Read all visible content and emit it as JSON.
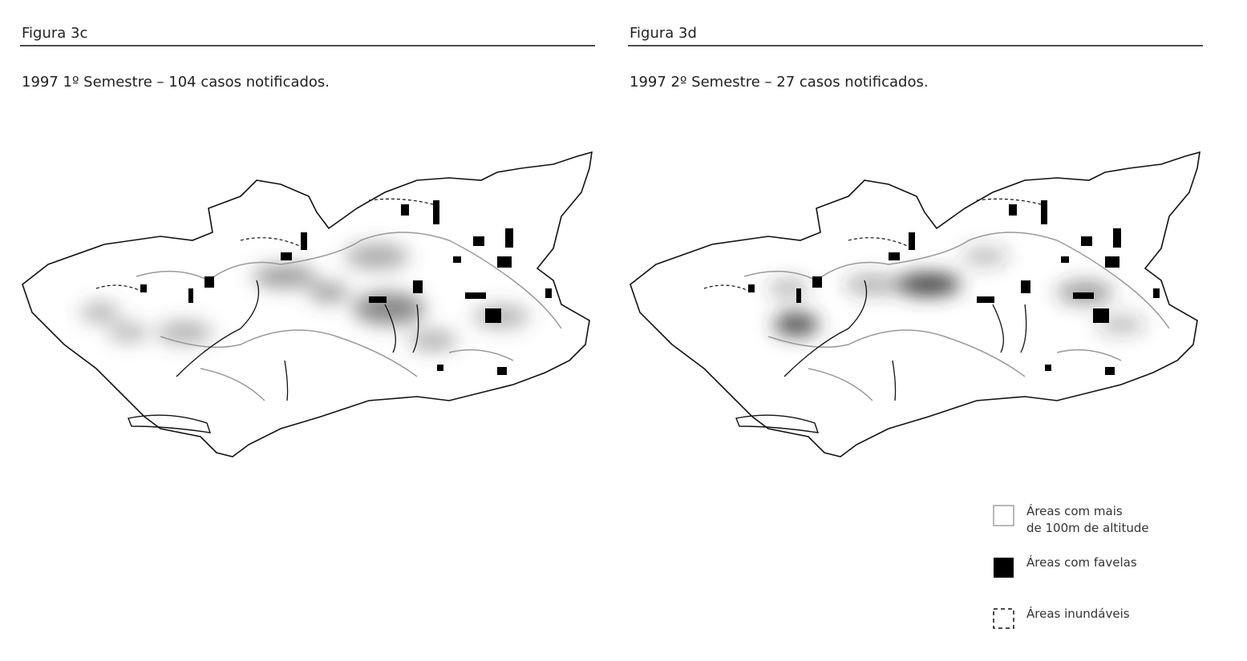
{
  "figures": [
    {
      "label": "Figura 3c",
      "caption": "1997 1º Semestre – 104 casos notificados."
    },
    {
      "label": "Figura 3d",
      "caption": "1997 2º Semestre – 27 casos notificados."
    }
  ],
  "legend": [
    {
      "lines": [
        "Áreas com mais",
        "de 100m de altitude"
      ]
    },
    {
      "lines": [
        "Áreas com favelas"
      ]
    },
    {
      "lines": [
        "Áreas inundáveis"
      ]
    }
  ]
}
